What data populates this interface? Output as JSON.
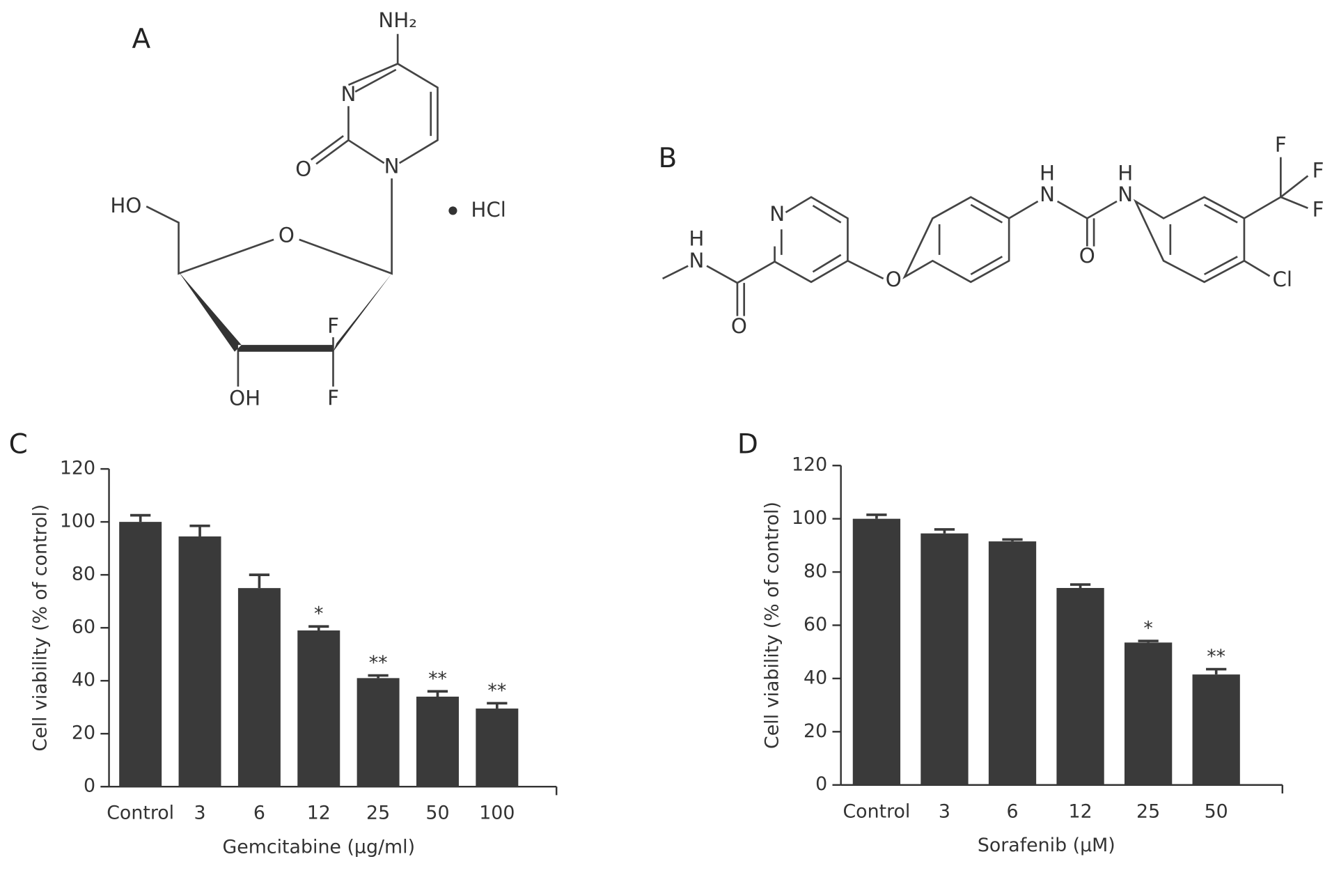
{
  "panels": [
    "A",
    "B",
    "C",
    "D"
  ],
  "structure_a": [
    "NH₂",
    "N",
    "O",
    "N",
    "HO",
    "O",
    "HCl",
    "F",
    "F",
    "OH"
  ],
  "structure_b": [
    "N",
    "H",
    "N",
    "O",
    "O",
    "H",
    "N",
    "H",
    "N",
    "O",
    "F",
    "F",
    "F",
    "Cl"
  ],
  "chart_data": [
    {
      "type": "bar",
      "ylabel": "Cell viability (% of control)",
      "xlabel": "Gemcitabine (μg/ml)",
      "categories": [
        "Control",
        "3",
        "6",
        "12",
        "25",
        "50",
        "100"
      ],
      "values": [
        100,
        94.5,
        75,
        59,
        41,
        34,
        29.5
      ],
      "errors": [
        2.5,
        4,
        5,
        1.5,
        1,
        2,
        2
      ],
      "annotations": [
        null,
        null,
        null,
        "*",
        "**",
        "**",
        "**"
      ],
      "color": "#3a3a3a",
      "ylim": [
        0,
        120
      ],
      "yticks": [
        0,
        20,
        40,
        60,
        80,
        100,
        120
      ]
    },
    {
      "type": "bar",
      "ylabel": "Cell viability (% of control)",
      "xlabel": "Sorafenib (μM)",
      "categories": [
        "Control",
        "3",
        "6",
        "12",
        "25",
        "50"
      ],
      "values": [
        100,
        94.5,
        91.5,
        74,
        53.5,
        41.5
      ],
      "errors": [
        1.5,
        1.5,
        0.7,
        1.3,
        0.6,
        2
      ],
      "annotations": [
        null,
        null,
        null,
        null,
        "*",
        "**"
      ],
      "color": "#3a3a3a",
      "ylim": [
        0,
        120
      ],
      "yticks": [
        0,
        20,
        40,
        60,
        80,
        100,
        120
      ]
    }
  ]
}
